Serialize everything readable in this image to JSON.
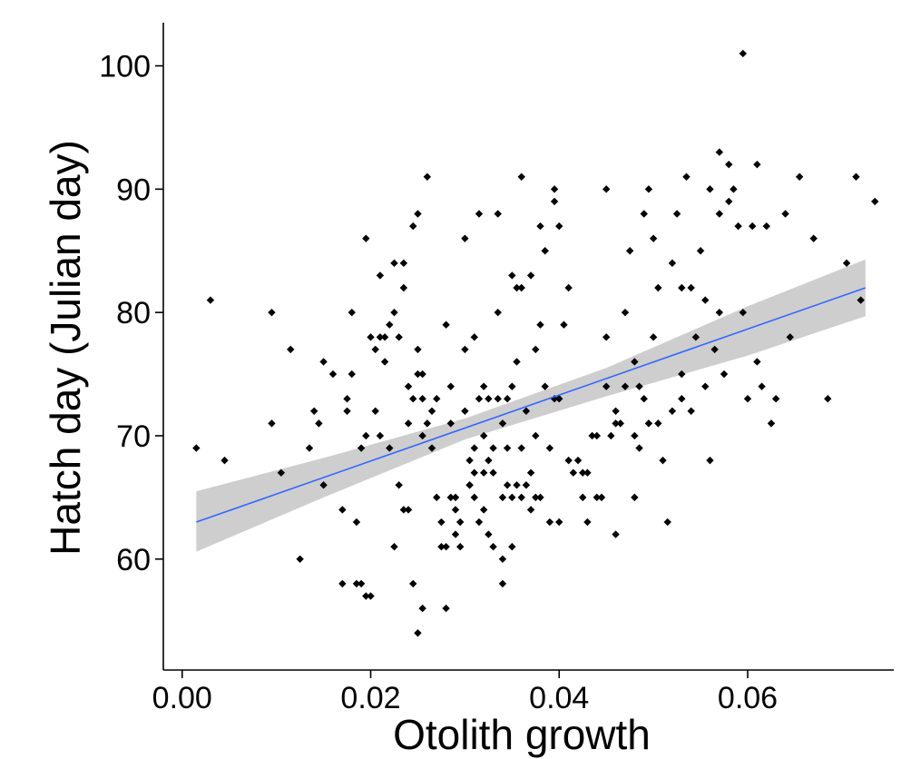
{
  "chart_data": {
    "type": "scatter",
    "title": "",
    "xlabel": "Otolith growth",
    "ylabel": "Hatch day (Julian day)",
    "xlim": [
      -0.002,
      0.0755
    ],
    "ylim": [
      51.0,
      103.5
    ],
    "x_ticks": [
      0.0,
      0.02,
      0.04,
      0.06
    ],
    "x_tick_labels": [
      "0.00",
      "0.02",
      "0.04",
      "0.06"
    ],
    "y_ticks": [
      60,
      70,
      80,
      90,
      100
    ],
    "y_tick_labels": [
      "60",
      "70",
      "80",
      "90",
      "100"
    ],
    "grid": false,
    "legend": "none",
    "colors": {
      "points": "#000000",
      "fit_line": "#3366ff",
      "confidence_band": "#bebebe"
    },
    "fit": {
      "method": "linear",
      "x": [
        0.0015,
        0.0725
      ],
      "y": [
        63.0,
        82.0
      ],
      "band_x": [
        0.0015,
        0.015,
        0.03,
        0.045,
        0.06,
        0.0725
      ],
      "band_lower": [
        60.6,
        65.0,
        69.7,
        73.2,
        76.5,
        79.7
      ],
      "band_upper": [
        65.5,
        68.2,
        71.4,
        75.5,
        80.5,
        84.3
      ]
    },
    "points": [
      [
        0.0015,
        69
      ],
      [
        0.003,
        81
      ],
      [
        0.0045,
        68
      ],
      [
        0.0095,
        80
      ],
      [
        0.0095,
        71
      ],
      [
        0.0105,
        67
      ],
      [
        0.0115,
        77
      ],
      [
        0.0125,
        60
      ],
      [
        0.0135,
        69
      ],
      [
        0.014,
        72
      ],
      [
        0.0145,
        71
      ],
      [
        0.015,
        66
      ],
      [
        0.015,
        76
      ],
      [
        0.016,
        75
      ],
      [
        0.017,
        58
      ],
      [
        0.017,
        64
      ],
      [
        0.0175,
        72
      ],
      [
        0.0175,
        73
      ],
      [
        0.018,
        80
      ],
      [
        0.018,
        75
      ],
      [
        0.0185,
        63
      ],
      [
        0.0185,
        58
      ],
      [
        0.019,
        58
      ],
      [
        0.019,
        69
      ],
      [
        0.0195,
        70
      ],
      [
        0.0195,
        86
      ],
      [
        0.0195,
        57
      ],
      [
        0.02,
        57
      ],
      [
        0.02,
        78
      ],
      [
        0.0205,
        77
      ],
      [
        0.0205,
        72
      ],
      [
        0.021,
        83
      ],
      [
        0.021,
        78
      ],
      [
        0.021,
        70
      ],
      [
        0.0215,
        76
      ],
      [
        0.0215,
        78
      ],
      [
        0.022,
        69
      ],
      [
        0.022,
        79
      ],
      [
        0.0225,
        80
      ],
      [
        0.0225,
        84
      ],
      [
        0.0225,
        61
      ],
      [
        0.023,
        78
      ],
      [
        0.023,
        66
      ],
      [
        0.0235,
        84
      ],
      [
        0.0235,
        82
      ],
      [
        0.0235,
        64
      ],
      [
        0.024,
        74
      ],
      [
        0.024,
        71
      ],
      [
        0.024,
        64
      ],
      [
        0.0245,
        73
      ],
      [
        0.0245,
        58
      ],
      [
        0.0245,
        87
      ],
      [
        0.025,
        88
      ],
      [
        0.025,
        54
      ],
      [
        0.025,
        77
      ],
      [
        0.025,
        75
      ],
      [
        0.0255,
        75
      ],
      [
        0.0255,
        73
      ],
      [
        0.0255,
        70
      ],
      [
        0.0255,
        56
      ],
      [
        0.026,
        91
      ],
      [
        0.026,
        71
      ],
      [
        0.0265,
        72
      ],
      [
        0.0265,
        69
      ],
      [
        0.027,
        65
      ],
      [
        0.027,
        73
      ],
      [
        0.0275,
        63
      ],
      [
        0.0275,
        61
      ],
      [
        0.028,
        79
      ],
      [
        0.028,
        56
      ],
      [
        0.028,
        61
      ],
      [
        0.0285,
        65
      ],
      [
        0.0285,
        71
      ],
      [
        0.0285,
        74
      ],
      [
        0.029,
        64
      ],
      [
        0.029,
        62
      ],
      [
        0.029,
        65
      ],
      [
        0.0295,
        63
      ],
      [
        0.0295,
        61
      ],
      [
        0.03,
        72
      ],
      [
        0.03,
        86
      ],
      [
        0.03,
        77
      ],
      [
        0.0305,
        68
      ],
      [
        0.0305,
        66
      ],
      [
        0.031,
        78
      ],
      [
        0.031,
        67
      ],
      [
        0.031,
        65
      ],
      [
        0.0315,
        88
      ],
      [
        0.0315,
        73
      ],
      [
        0.0315,
        63
      ],
      [
        0.032,
        74
      ],
      [
        0.032,
        70
      ],
      [
        0.032,
        64
      ],
      [
        0.0325,
        73
      ],
      [
        0.0325,
        68
      ],
      [
        0.0325,
        62
      ],
      [
        0.033,
        67
      ],
      [
        0.033,
        61
      ],
      [
        0.0335,
        88
      ],
      [
        0.0335,
        80
      ],
      [
        0.0335,
        73
      ],
      [
        0.034,
        71
      ],
      [
        0.034,
        60
      ],
      [
        0.034,
        58
      ],
      [
        0.0345,
        69
      ],
      [
        0.0345,
        73
      ],
      [
        0.035,
        83
      ],
      [
        0.035,
        74
      ],
      [
        0.035,
        65
      ],
      [
        0.0355,
        82
      ],
      [
        0.0355,
        76
      ],
      [
        0.0355,
        66
      ],
      [
        0.036,
        91
      ],
      [
        0.036,
        82
      ],
      [
        0.036,
        69
      ],
      [
        0.0365,
        72
      ],
      [
        0.0365,
        66
      ],
      [
        0.037,
        83
      ],
      [
        0.037,
        64
      ],
      [
        0.0375,
        77
      ],
      [
        0.0375,
        70
      ],
      [
        0.038,
        87
      ],
      [
        0.038,
        79
      ],
      [
        0.038,
        65
      ],
      [
        0.0385,
        85
      ],
      [
        0.0385,
        74
      ],
      [
        0.039,
        69
      ],
      [
        0.039,
        63
      ],
      [
        0.0395,
        90
      ],
      [
        0.0395,
        89
      ],
      [
        0.0395,
        73
      ],
      [
        0.04,
        87
      ],
      [
        0.04,
        73
      ],
      [
        0.04,
        63
      ],
      [
        0.0405,
        79
      ],
      [
        0.041,
        82
      ],
      [
        0.041,
        68
      ],
      [
        0.0415,
        67
      ],
      [
        0.042,
        68
      ],
      [
        0.0425,
        65
      ],
      [
        0.043,
        67
      ],
      [
        0.0435,
        70
      ],
      [
        0.044,
        70
      ],
      [
        0.044,
        65
      ],
      [
        0.0445,
        65
      ],
      [
        0.045,
        90
      ],
      [
        0.045,
        78
      ],
      [
        0.045,
        74
      ],
      [
        0.0455,
        70
      ],
      [
        0.046,
        72
      ],
      [
        0.046,
        62
      ],
      [
        0.0465,
        71
      ],
      [
        0.047,
        80
      ],
      [
        0.047,
        74
      ],
      [
        0.0475,
        85
      ],
      [
        0.048,
        76
      ],
      [
        0.048,
        70
      ],
      [
        0.048,
        65
      ],
      [
        0.0485,
        69
      ],
      [
        0.049,
        88
      ],
      [
        0.049,
        73
      ],
      [
        0.0495,
        90
      ],
      [
        0.0495,
        71
      ],
      [
        0.05,
        86
      ],
      [
        0.05,
        78
      ],
      [
        0.0505,
        82
      ],
      [
        0.051,
        68
      ],
      [
        0.0515,
        63
      ],
      [
        0.052,
        84
      ],
      [
        0.0525,
        88
      ],
      [
        0.053,
        82
      ],
      [
        0.053,
        73
      ],
      [
        0.0535,
        91
      ],
      [
        0.054,
        82
      ],
      [
        0.054,
        72
      ],
      [
        0.055,
        85
      ],
      [
        0.0555,
        81
      ],
      [
        0.056,
        90
      ],
      [
        0.056,
        68
      ],
      [
        0.0565,
        77
      ],
      [
        0.057,
        93
      ],
      [
        0.057,
        88
      ],
      [
        0.0575,
        75
      ],
      [
        0.058,
        92
      ],
      [
        0.058,
        89
      ],
      [
        0.0585,
        90
      ],
      [
        0.059,
        87
      ],
      [
        0.0595,
        101
      ],
      [
        0.0595,
        80
      ],
      [
        0.06,
        73
      ],
      [
        0.0605,
        87
      ],
      [
        0.061,
        92
      ],
      [
        0.061,
        76
      ],
      [
        0.0615,
        74
      ],
      [
        0.062,
        87
      ],
      [
        0.0625,
        71
      ],
      [
        0.063,
        73
      ],
      [
        0.064,
        88
      ],
      [
        0.0645,
        78
      ],
      [
        0.0655,
        91
      ],
      [
        0.067,
        86
      ],
      [
        0.0685,
        73
      ],
      [
        0.0705,
        84
      ],
      [
        0.0715,
        91
      ],
      [
        0.072,
        81
      ],
      [
        0.0735,
        89
      ],
      [
        0.035,
        61
      ],
      [
        0.036,
        65
      ],
      [
        0.037,
        67
      ],
      [
        0.033,
        69
      ],
      [
        0.031,
        69
      ],
      [
        0.032,
        67
      ],
      [
        0.034,
        65
      ],
      [
        0.0305,
        66
      ],
      [
        0.0345,
        66
      ],
      [
        0.0375,
        65
      ],
      [
        0.0425,
        67
      ],
      [
        0.046,
        71
      ],
      [
        0.0485,
        74
      ],
      [
        0.0505,
        71
      ],
      [
        0.053,
        75
      ],
      [
        0.0545,
        78
      ],
      [
        0.043,
        63
      ],
      [
        0.052,
        72
      ],
      [
        0.0555,
        74
      ],
      [
        0.057,
        80
      ]
    ]
  }
}
